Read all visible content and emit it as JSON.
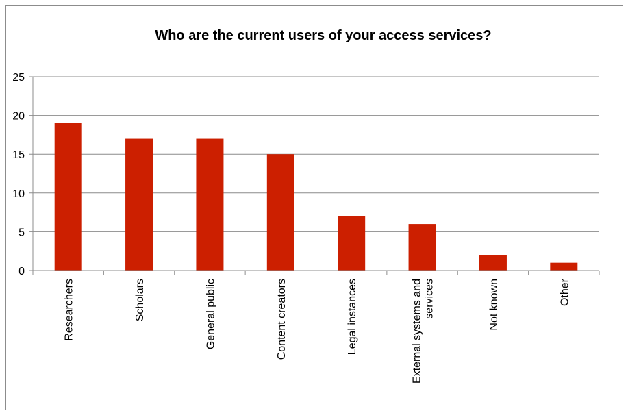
{
  "chart_data": {
    "type": "bar",
    "title": "Who are the current users of your access services?",
    "categories": [
      [
        "Researchers"
      ],
      [
        "Scholars"
      ],
      [
        "General public"
      ],
      [
        "Content creators"
      ],
      [
        "Legal instances"
      ],
      [
        "External systems and",
        "services"
      ],
      [
        "Not known"
      ],
      [
        "Other"
      ]
    ],
    "values": [
      19,
      17,
      17,
      15,
      7,
      6,
      2,
      1
    ],
    "ylim": [
      0,
      25
    ],
    "yticks": [
      0,
      5,
      10,
      15,
      20,
      25
    ],
    "grid": true,
    "legend": "none",
    "bar_color": "#cc1f00",
    "grid_color": "#8c8c8c"
  }
}
